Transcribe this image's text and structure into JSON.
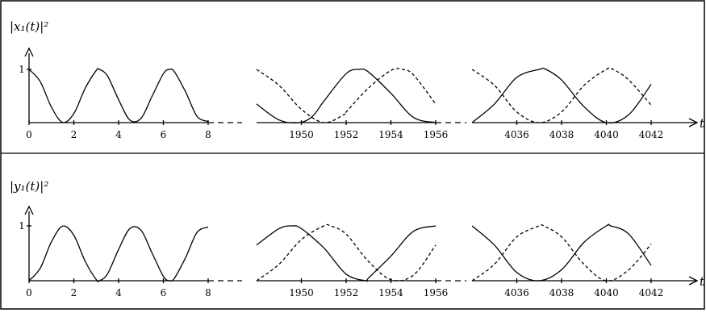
{
  "chart_data": [
    {
      "type": "line",
      "ylabel": "|x₁(t)|²",
      "xlabel": "t",
      "ytick": "1",
      "ylim": [
        0,
        1
      ],
      "segments": [
        {
          "xlim": [
            0,
            8
          ],
          "xticks": [
            "0",
            "2",
            "4",
            "6",
            "8"
          ],
          "series": [
            {
              "style": "solid",
              "x": [
                0,
                0.5,
                1,
                1.5,
                2,
                2.5,
                3,
                3.14,
                3.5,
                4,
                4.5,
                5,
                5.5,
                6,
                6.28,
                6.5,
                7,
                7.5,
                8
              ],
              "y": [
                1.0,
                0.77,
                0.29,
                0.005,
                0.17,
                0.64,
                0.98,
                1.0,
                0.88,
                0.43,
                0.05,
                0.08,
                0.5,
                0.92,
                1.0,
                0.95,
                0.57,
                0.12,
                0.02
              ]
            }
          ]
        },
        {
          "xlim": [
            1948,
            1956
          ],
          "xticks": [
            "1950",
            "1952",
            "1954",
            "1956"
          ],
          "series": [
            {
              "style": "solid",
              "x": [
                1948,
                1949,
                1949.9,
                1950.5,
                1951,
                1952,
                1952.6,
                1953,
                1954,
                1955,
                1956
              ],
              "y": [
                0.35,
                0.05,
                0.0,
                0.12,
                0.4,
                0.92,
                1.0,
                0.95,
                0.55,
                0.1,
                0.0
              ]
            },
            {
              "style": "dashed",
              "x": [
                1948,
                1949,
                1950,
                1951,
                1951.9,
                1952,
                1953,
                1954,
                1954.5,
                1955,
                1956
              ],
              "y": [
                1.0,
                0.7,
                0.25,
                0.0,
                0.15,
                0.2,
                0.65,
                0.98,
                1.0,
                0.9,
                0.35
              ]
            }
          ]
        },
        {
          "xlim": [
            4034,
            4042
          ],
          "xticks": [
            "4036",
            "4038",
            "4040",
            "4042"
          ],
          "series": [
            {
              "style": "solid",
              "x": [
                4034,
                4035,
                4036,
                4037,
                4037.3,
                4038,
                4039,
                4040,
                4041,
                4042
              ],
              "y": [
                0.0,
                0.35,
                0.85,
                1.0,
                1.0,
                0.8,
                0.3,
                0.0,
                0.15,
                0.72
              ]
            },
            {
              "style": "dashed",
              "x": [
                4034,
                4035,
                4036,
                4037,
                4038,
                4039,
                4040,
                4040.3,
                4041,
                4042
              ],
              "y": [
                1.0,
                0.7,
                0.2,
                0.0,
                0.2,
                0.7,
                1.0,
                1.0,
                0.8,
                0.33
              ]
            }
          ]
        }
      ]
    },
    {
      "type": "line",
      "ylabel": "|y₁(t)|²",
      "xlabel": "t",
      "ytick": "1",
      "ylim": [
        0,
        1
      ],
      "segments": [
        {
          "xlim": [
            0,
            8
          ],
          "xticks": [
            "0",
            "2",
            "4",
            "6",
            "8"
          ],
          "series": [
            {
              "style": "solid",
              "x": [
                0,
                0.5,
                1,
                1.5,
                2,
                2.5,
                3,
                3.14,
                3.5,
                4,
                4.5,
                5,
                5.5,
                6,
                6.28,
                6.5,
                7,
                7.5,
                8
              ],
              "y": [
                0.0,
                0.23,
                0.71,
                0.995,
                0.83,
                0.36,
                0.02,
                0.0,
                0.12,
                0.57,
                0.95,
                0.92,
                0.5,
                0.08,
                0.0,
                0.05,
                0.43,
                0.88,
                0.98
              ]
            }
          ]
        },
        {
          "xlim": [
            1948,
            1956
          ],
          "xticks": [
            "1950",
            "1952",
            "1954",
            "1956"
          ],
          "series": [
            {
              "style": "solid",
              "x": [
                1948,
                1949,
                1949.6,
                1950,
                1951,
                1952,
                1952.9,
                1953,
                1954,
                1955,
                1956
              ],
              "y": [
                0.65,
                0.95,
                1.0,
                0.95,
                0.6,
                0.12,
                0.0,
                0.05,
                0.45,
                0.9,
                1.0
              ]
            },
            {
              "style": "dashed",
              "x": [
                1948,
                1949,
                1950,
                1951,
                1951.3,
                1952,
                1953,
                1954,
                1955,
                1956
              ],
              "y": [
                0.0,
                0.3,
                0.75,
                1.0,
                1.0,
                0.85,
                0.35,
                0.02,
                0.1,
                0.65
              ]
            }
          ]
        },
        {
          "xlim": [
            4034,
            4042
          ],
          "xticks": [
            "4036",
            "4038",
            "4040",
            "4042"
          ],
          "series": [
            {
              "style": "solid",
              "x": [
                4034,
                4035,
                4036,
                4037,
                4038,
                4039,
                4040,
                4040.2,
                4041,
                4042
              ],
              "y": [
                1.0,
                0.65,
                0.15,
                0.0,
                0.2,
                0.7,
                1.0,
                1.0,
                0.85,
                0.28
              ]
            },
            {
              "style": "dashed",
              "x": [
                4034,
                4035,
                4036,
                4037,
                4037.2,
                4038,
                4039,
                4040,
                4041,
                4042
              ],
              "y": [
                0.0,
                0.3,
                0.8,
                1.0,
                1.0,
                0.8,
                0.3,
                0.0,
                0.2,
                0.67
              ]
            }
          ]
        }
      ]
    }
  ]
}
